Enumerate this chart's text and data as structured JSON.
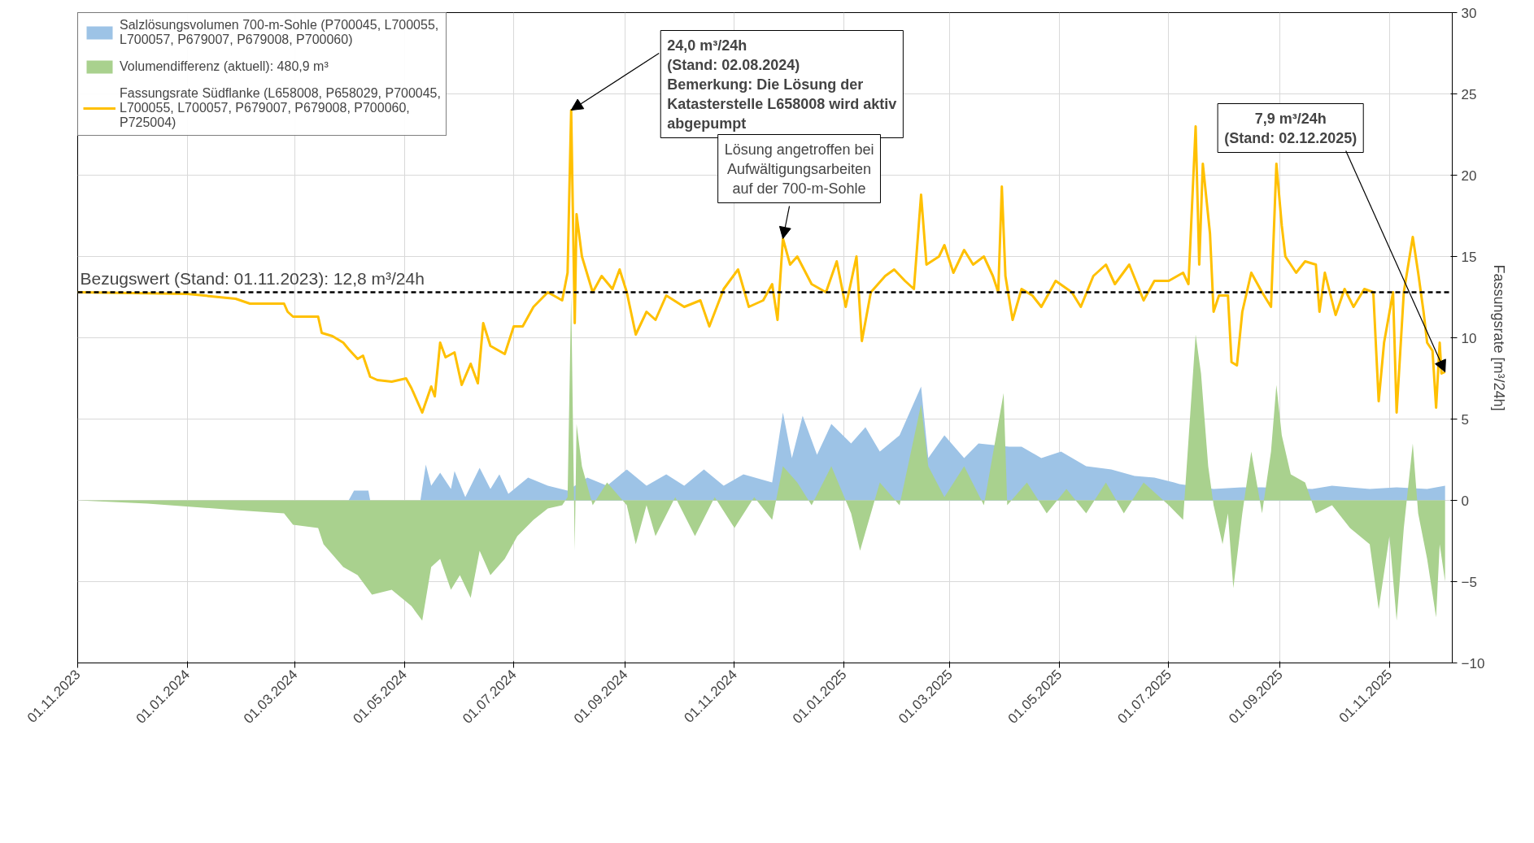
{
  "chart_data": {
    "type": "line",
    "ylabel": "Fassungsrate [m³/24h]",
    "xlim": [
      "2023-11-01",
      "2025-12-06"
    ],
    "ylim": [
      -10,
      30
    ],
    "xticks": [
      {
        "value": "2023-11-01",
        "label": "01.11.2023"
      },
      {
        "value": "2024-01-01",
        "label": "01.01.2024"
      },
      {
        "value": "2024-03-01",
        "label": "01.03.2024"
      },
      {
        "value": "2024-05-01",
        "label": "01.05.2024"
      },
      {
        "value": "2024-07-01",
        "label": "01.07.2024"
      },
      {
        "value": "2024-09-01",
        "label": "01.09.2024"
      },
      {
        "value": "2024-11-01",
        "label": "01.11.2024"
      },
      {
        "value": "2025-01-01",
        "label": "01.01.2025"
      },
      {
        "value": "2025-03-01",
        "label": "01.03.2025"
      },
      {
        "value": "2025-05-01",
        "label": "01.05.2025"
      },
      {
        "value": "2025-07-01",
        "label": "01.07.2025"
      },
      {
        "value": "2025-09-01",
        "label": "01.09.2025"
      },
      {
        "value": "2025-11-01",
        "label": "01.11.2025"
      }
    ],
    "yticks": [
      -10,
      -5,
      0,
      5,
      10,
      15,
      20,
      25,
      30
    ],
    "grid": true,
    "legend": "top left",
    "marker": "none",
    "series": [
      {
        "name": "Salzlösungsvolumen 700-m-Sohle (P700045, L700055, L700057, P679007, P679008, P700060)",
        "type": "area",
        "color": "#9dc3e6",
        "x": [
          "2023-11-01",
          "2024-03-31",
          "2024-04-03",
          "2024-04-11",
          "2024-04-12",
          "2024-05-10",
          "2024-05-13",
          "2024-05-16",
          "2024-05-21",
          "2024-05-27",
          "2024-05-29",
          "2024-06-04",
          "2024-06-12",
          "2024-06-18",
          "2024-06-23",
          "2024-06-28",
          "2024-07-09",
          "2024-07-20",
          "2024-07-31",
          "2024-08-11",
          "2024-08-22",
          "2024-09-02",
          "2024-09-13",
          "2024-09-24",
          "2024-10-04",
          "2024-10-15",
          "2024-10-26",
          "2024-11-06",
          "2024-11-22",
          "2024-11-28",
          "2024-12-03",
          "2024-12-09",
          "2024-12-17",
          "2024-12-25",
          "2025-01-05",
          "2025-01-13",
          "2025-01-21",
          "2025-02-01",
          "2025-02-13",
          "2025-02-17",
          "2025-02-26",
          "2025-03-09",
          "2025-03-17",
          "2025-04-03",
          "2025-04-10",
          "2025-04-21",
          "2025-05-02",
          "2025-05-16",
          "2025-05-30",
          "2025-06-12",
          "2025-06-23",
          "2025-07-04",
          "2025-07-07",
          "2025-07-26",
          "2025-08-11",
          "2025-08-22",
          "2025-09-19",
          "2025-09-30",
          "2025-10-10",
          "2025-10-21",
          "2025-11-05",
          "2025-11-22",
          "2025-12-02"
        ],
        "values": [
          0,
          0,
          0.6,
          0.6,
          0,
          0,
          2.2,
          0.9,
          1.7,
          0.7,
          1.8,
          0.2,
          2.0,
          0.7,
          1.6,
          0.4,
          1.4,
          0.9,
          0.6,
          1.4,
          0.9,
          1.9,
          0.9,
          1.6,
          0.9,
          1.9,
          0.9,
          1.6,
          1.1,
          5.4,
          2.6,
          5.2,
          2.8,
          4.7,
          3.5,
          4.5,
          3.0,
          4.0,
          7.0,
          2.6,
          4.0,
          2.6,
          3.5,
          3.3,
          3.3,
          2.6,
          3.0,
          2.1,
          1.9,
          1.5,
          1.4,
          1.1,
          1.0,
          0.7,
          0.8,
          0.8,
          0.7,
          0.9,
          0.8,
          0.7,
          0.8,
          0.7,
          0.9
        ]
      },
      {
        "name": "Volumendifferenz (aktuell): 480,9 m³",
        "type": "area",
        "color": "#a9d18e",
        "x": [
          "2023-11-01",
          "2023-12-10",
          "2024-01-28",
          "2024-02-24",
          "2024-02-29",
          "2024-03-14",
          "2024-03-17",
          "2024-03-28",
          "2024-04-05",
          "2024-04-13",
          "2024-04-24",
          "2024-05-05",
          "2024-05-11",
          "2024-05-16",
          "2024-05-21",
          "2024-05-27",
          "2024-06-01",
          "2024-06-07",
          "2024-06-12",
          "2024-06-18",
          "2024-06-26",
          "2024-07-03",
          "2024-07-12",
          "2024-07-20",
          "2024-07-28",
          "2024-07-31",
          "2024-08-02",
          "2024-08-04",
          "2024-08-05",
          "2024-08-08",
          "2024-08-14",
          "2024-08-22",
          "2024-09-02",
          "2024-09-07",
          "2024-09-13",
          "2024-09-18",
          "2024-09-29",
          "2024-10-10",
          "2024-10-21",
          "2024-11-01",
          "2024-11-12",
          "2024-11-22",
          "2024-11-28",
          "2024-12-06",
          "2024-12-14",
          "2024-12-25",
          "2025-01-05",
          "2025-01-10",
          "2025-01-21",
          "2025-02-01",
          "2025-02-13",
          "2025-02-17",
          "2025-02-26",
          "2025-03-09",
          "2025-03-20",
          "2025-03-31",
          "2025-04-02",
          "2025-04-13",
          "2025-04-24",
          "2025-05-05",
          "2025-05-16",
          "2025-05-27",
          "2025-06-06",
          "2025-06-17",
          "2025-07-01",
          "2025-07-09",
          "2025-07-16",
          "2025-07-19",
          "2025-07-23",
          "2025-07-26",
          "2025-07-31",
          "2025-08-03",
          "2025-08-06",
          "2025-08-11",
          "2025-08-16",
          "2025-08-22",
          "2025-08-27",
          "2025-08-30",
          "2025-09-02",
          "2025-09-07",
          "2025-09-15",
          "2025-09-21",
          "2025-09-30",
          "2025-10-10",
          "2025-10-21",
          "2025-10-26",
          "2025-11-01",
          "2025-11-05",
          "2025-11-09",
          "2025-11-14",
          "2025-11-17",
          "2025-11-22",
          "2025-11-27",
          "2025-11-29",
          "2025-12-02"
        ],
        "values": [
          0,
          -0.2,
          -0.6,
          -0.8,
          -1.5,
          -1.7,
          -2.7,
          -4.1,
          -4.6,
          -5.8,
          -5.5,
          -6.5,
          -7.4,
          -4.1,
          -3.6,
          -5.5,
          -4.6,
          -6.0,
          -3.1,
          -4.6,
          -3.6,
          -2.2,
          -1.2,
          -0.5,
          -0.3,
          0.2,
          12.6,
          -3.1,
          4.7,
          2.1,
          -0.3,
          1.1,
          -0.3,
          -2.7,
          -0.3,
          -2.2,
          0.2,
          -2.2,
          0.2,
          -1.7,
          0.2,
          -1.2,
          2.1,
          1.1,
          -0.3,
          2.1,
          -0.8,
          -3.1,
          1.1,
          -0.3,
          5.9,
          2.1,
          0.2,
          2.1,
          -0.3,
          6.6,
          -0.3,
          1.1,
          -0.8,
          0.7,
          -0.8,
          1.1,
          -0.8,
          1.1,
          -0.3,
          -1.2,
          10.2,
          7.8,
          2.1,
          -0.3,
          -2.7,
          -0.8,
          -5.4,
          -0.8,
          3.0,
          -0.8,
          3.0,
          7.1,
          4.0,
          1.6,
          1.1,
          -0.8,
          -0.3,
          -1.7,
          -2.7,
          -6.7,
          -2.2,
          -7.4,
          -1.7,
          3.5,
          -0.8,
          -3.6,
          -7.2,
          -2.7,
          -5.0
        ]
      },
      {
        "name": "Fassungsrate Südflanke (L658008, P658029, P700045, L700055, L700057, P679007, P679008, P700060, P725004)",
        "color": "#ffc000",
        "x": [
          "2023-11-01",
          "2024-01-01",
          "2024-01-28",
          "2024-02-05",
          "2024-02-24",
          "2024-02-26",
          "2024-02-29",
          "2024-03-14",
          "2024-03-16",
          "2024-03-22",
          "2024-03-28",
          "2024-03-31",
          "2024-04-05",
          "2024-04-08",
          "2024-04-12",
          "2024-04-16",
          "2024-04-24",
          "2024-05-02",
          "2024-05-05",
          "2024-05-11",
          "2024-05-16",
          "2024-05-18",
          "2024-05-21",
          "2024-05-24",
          "2024-05-29",
          "2024-06-02",
          "2024-06-07",
          "2024-06-11",
          "2024-06-14",
          "2024-06-18",
          "2024-06-26",
          "2024-07-01",
          "2024-07-06",
          "2024-07-12",
          "2024-07-20",
          "2024-07-28",
          "2024-07-31",
          "2024-08-02",
          "2024-08-04",
          "2024-08-05",
          "2024-08-08",
          "2024-08-14",
          "2024-08-19",
          "2024-08-25",
          "2024-08-29",
          "2024-09-02",
          "2024-09-07",
          "2024-09-13",
          "2024-09-18",
          "2024-09-24",
          "2024-10-04",
          "2024-10-13",
          "2024-10-18",
          "2024-10-26",
          "2024-11-03",
          "2024-11-09",
          "2024-11-17",
          "2024-11-22",
          "2024-11-25",
          "2024-11-28",
          "2024-12-02",
          "2024-12-06",
          "2024-12-14",
          "2024-12-22",
          "2024-12-28",
          "2025-01-02",
          "2025-01-08",
          "2025-01-11",
          "2025-01-16",
          "2025-01-24",
          "2025-01-29",
          "2025-02-04",
          "2025-02-09",
          "2025-02-13",
          "2025-02-16",
          "2025-02-23",
          "2025-02-26",
          "2025-03-03",
          "2025-03-09",
          "2025-03-14",
          "2025-03-20",
          "2025-03-25",
          "2025-03-28",
          "2025-03-30",
          "2025-04-01",
          "2025-04-05",
          "2025-04-10",
          "2025-04-16",
          "2025-04-21",
          "2025-04-29",
          "2025-05-08",
          "2025-05-13",
          "2025-05-20",
          "2025-05-27",
          "2025-06-01",
          "2025-06-09",
          "2025-06-17",
          "2025-06-23",
          "2025-07-01",
          "2025-07-09",
          "2025-07-12",
          "2025-07-16",
          "2025-07-18",
          "2025-07-20",
          "2025-07-24",
          "2025-07-26",
          "2025-07-29",
          "2025-08-03",
          "2025-08-05",
          "2025-08-08",
          "2025-08-11",
          "2025-08-16",
          "2025-08-22",
          "2025-08-27",
          "2025-08-30",
          "2025-09-02",
          "2025-09-04",
          "2025-09-10",
          "2025-09-15",
          "2025-09-21",
          "2025-09-23",
          "2025-09-26",
          "2025-10-02",
          "2025-10-07",
          "2025-10-12",
          "2025-10-18",
          "2025-10-23",
          "2025-10-26",
          "2025-10-29",
          "2025-11-03",
          "2025-11-05",
          "2025-11-09",
          "2025-11-14",
          "2025-11-17",
          "2025-11-20",
          "2025-11-22",
          "2025-11-25",
          "2025-11-27",
          "2025-11-29",
          "2025-11-30",
          "2025-12-02"
        ],
        "values": [
          12.8,
          12.7,
          12.4,
          12.1,
          12.1,
          11.6,
          11.3,
          11.3,
          10.3,
          10.1,
          9.7,
          9.3,
          8.7,
          8.9,
          7.6,
          7.4,
          7.3,
          7.5,
          6.9,
          5.4,
          7.0,
          6.4,
          9.7,
          8.8,
          9.1,
          7.1,
          8.4,
          7.2,
          10.9,
          9.5,
          9.0,
          10.7,
          10.7,
          11.9,
          12.8,
          12.3,
          14.0,
          24.0,
          10.9,
          17.6,
          15.0,
          12.8,
          13.8,
          13.0,
          14.2,
          12.8,
          10.2,
          11.6,
          11.1,
          12.6,
          11.9,
          12.3,
          10.7,
          13.0,
          14.2,
          11.9,
          12.3,
          13.3,
          11.1,
          16.1,
          14.5,
          15.0,
          13.3,
          12.8,
          14.7,
          11.9,
          15.0,
          9.8,
          12.8,
          13.8,
          14.2,
          13.5,
          13.0,
          18.8,
          14.5,
          15.0,
          15.7,
          14.0,
          15.4,
          14.5,
          15.0,
          13.8,
          12.8,
          19.3,
          13.8,
          11.1,
          13.0,
          12.6,
          11.9,
          13.5,
          12.8,
          11.9,
          13.8,
          14.5,
          13.3,
          14.5,
          12.3,
          13.5,
          13.5,
          14.0,
          13.3,
          23.0,
          14.5,
          20.7,
          16.4,
          11.6,
          12.6,
          12.6,
          8.5,
          8.3,
          11.6,
          14.0,
          12.8,
          11.9,
          20.7,
          16.9,
          15.0,
          14.0,
          14.7,
          14.5,
          11.6,
          14.0,
          11.4,
          13.0,
          11.9,
          13.0,
          12.8,
          6.1,
          9.7,
          12.8,
          5.4,
          12.8,
          16.2,
          14.0,
          11.6,
          9.7,
          9.2,
          5.7,
          9.7,
          7.8,
          7.9
        ]
      }
    ],
    "ref_lines": [
      {
        "axis": "y",
        "value": 12.8,
        "label": "Bezugswert (Stand: 01.11.2023): 12,8 m³/24h",
        "color": "#000000",
        "line_style": "dashed"
      }
    ],
    "annotations": [
      {
        "text": "24,0 m³/24h\n(Stand: 02.08.2024)\nBemerkung: Die Lösung der\nKatasterstelle L658008 wird aktiv\nabgepumpt",
        "x": "2024-08-02",
        "y": 24.0
      },
      {
        "text": "Lösung angetroffen bei\nAufwältigungsarbeiten\nauf der 700-m-Sohle",
        "x": "2024-11-28",
        "y": 16.1
      },
      {
        "text": "7,9 m³/24h\n(Stand: 02.12.2025)",
        "x": "2025-12-02",
        "y": 7.9
      }
    ]
  }
}
